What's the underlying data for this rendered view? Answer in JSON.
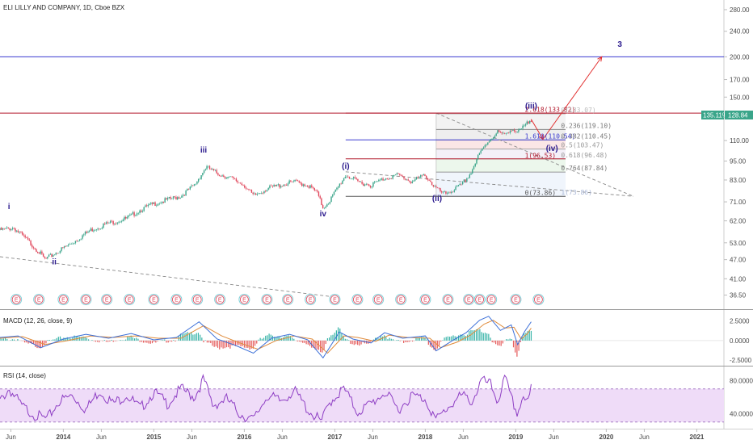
{
  "title": "ELI LILLY AND COMPANY, 1D, Cboe BZX",
  "colors": {
    "up": "#3aa58a",
    "down": "#e0455a",
    "red_line": "#b2182b",
    "blue_line": "#3a3ad0",
    "wave_label": "#2b1a8e",
    "macd": "#3b6fd8",
    "signal": "#e08b3a",
    "rsi": "#8e3ec4",
    "rsi_band": "#efdcf8"
  },
  "chart_data": [
    {
      "type": "line",
      "name": "price",
      "x_ticks": [
        "Jun",
        "2014",
        "Jun",
        "2015",
        "Jun",
        "2016",
        "Jun",
        "2017",
        "Jun",
        "2018",
        "Jun",
        "2019",
        "Jun",
        "2020",
        "Jun",
        "2021"
      ],
      "y_ticks": [
        "280.00",
        "240.00",
        "200.00",
        "170.00",
        "150.00",
        "130.00",
        "110.00",
        "95.00",
        "83.00",
        "71.00",
        "62.00",
        "53.00",
        "47.00",
        "41.00",
        "36.50"
      ],
      "y_scale": "log",
      "ylim": [
        33,
        300
      ],
      "x_range": [
        2013.3,
        2021.3
      ],
      "price_path": [
        [
          2013.3,
          58
        ],
        [
          2013.45,
          59
        ],
        [
          2013.6,
          54
        ],
        [
          2013.72,
          50
        ],
        [
          2013.8,
          47
        ],
        [
          2013.9,
          49
        ],
        [
          2014.1,
          53
        ],
        [
          2014.3,
          58
        ],
        [
          2014.5,
          61
        ],
        [
          2014.7,
          63
        ],
        [
          2014.85,
          67
        ],
        [
          2015.0,
          70
        ],
        [
          2015.15,
          72
        ],
        [
          2015.3,
          74
        ],
        [
          2015.45,
          80
        ],
        [
          2015.58,
          91
        ],
        [
          2015.7,
          87
        ],
        [
          2015.85,
          84
        ],
        [
          2016.0,
          80
        ],
        [
          2016.1,
          74
        ],
        [
          2016.25,
          78
        ],
        [
          2016.4,
          80
        ],
        [
          2016.55,
          82
        ],
        [
          2016.7,
          80
        ],
        [
          2016.8,
          76
        ],
        [
          2016.87,
          68
        ],
        [
          2016.95,
          72
        ],
        [
          2017.05,
          80
        ],
        [
          2017.12,
          86
        ],
        [
          2017.25,
          82
        ],
        [
          2017.4,
          80
        ],
        [
          2017.55,
          84
        ],
        [
          2017.7,
          86
        ],
        [
          2017.85,
          82
        ],
        [
          2018.0,
          86
        ],
        [
          2018.1,
          79
        ],
        [
          2018.2,
          75
        ],
        [
          2018.3,
          77
        ],
        [
          2018.4,
          80
        ],
        [
          2018.5,
          87
        ],
        [
          2018.6,
          100
        ],
        [
          2018.7,
          110
        ],
        [
          2018.8,
          117
        ],
        [
          2018.87,
          114
        ],
        [
          2018.95,
          120
        ],
        [
          2019.02,
          116
        ],
        [
          2019.1,
          122
        ],
        [
          2019.17,
          128
        ]
      ],
      "red_candle_years": [
        2013.45,
        2013.72,
        2014.3,
        2015.58,
        2015.85,
        2016.1,
        2016.55,
        2016.8,
        2017.25,
        2017.85,
        2018.1,
        2018.87
      ],
      "wave_labels": [
        {
          "text": "i",
          "x": 2013.4,
          "y": 67.5
        },
        {
          "text": "ii",
          "x": 2013.9,
          "y": 45.5
        },
        {
          "text": "iii",
          "x": 2015.55,
          "y": 101
        },
        {
          "text": "iv",
          "x": 2016.87,
          "y": 64
        },
        {
          "text": "(i)",
          "x": 2017.12,
          "y": 90
        },
        {
          "text": "(ii)",
          "x": 2018.13,
          "y": 71.5
        },
        {
          "text": "(iii)",
          "x": 2019.17,
          "y": 138
        },
        {
          "text": "(iv)",
          "x": 2019.4,
          "y": 102
        },
        {
          "text": "3",
          "x": 2020.15,
          "y": 215
        }
      ],
      "fib_levels": [
        {
          "label": "2.618(133.82)",
          "value": 133.82,
          "color": "#b2182b"
        },
        {
          "label": "1.610(110.54)",
          "value": 110.54,
          "color": "#3a3ad0"
        },
        {
          "label": "1(96.53)",
          "value": 96.53,
          "color": "#b2182b"
        },
        {
          "label": "0(73.86)",
          "value": 73.86,
          "color": "#555555"
        },
        {
          "label": "0(133.07)",
          "value": 133.07,
          "color": "#bbbbbb"
        },
        {
          "label": "0.236(119.10)",
          "value": 119.1,
          "color": "#777777"
        },
        {
          "label": "0.382(110.45)",
          "value": 110.45,
          "color": "#777777"
        },
        {
          "label": "0.5(103.47)",
          "value": 103.47,
          "color": "#999999"
        },
        {
          "label": "0.618(96.48)",
          "value": 96.48,
          "color": "#999999"
        },
        {
          "label": "0.764(87.84)",
          "value": 87.84,
          "color": "#777777"
        },
        {
          "label": "1(73.86)",
          "value": 73.86,
          "color": "#a9b7d6"
        }
      ],
      "resistance_lines": [
        {
          "value": 200,
          "color": "#3a3ad0"
        },
        {
          "value": 133.82,
          "color": "#b2182b"
        }
      ],
      "projection_path": [
        [
          2019.17,
          128
        ],
        [
          2019.3,
          111
        ],
        [
          2019.95,
          200
        ]
      ],
      "last_price_badges": [
        "135.11%",
        "128.84"
      ],
      "earnings_marker": "E",
      "earnings_years": [
        2013.48,
        2013.73,
        2014.0,
        2014.25,
        2014.48,
        2014.73,
        2015.0,
        2015.25,
        2015.48,
        2015.73,
        2016.0,
        2016.25,
        2016.48,
        2016.73,
        2017.0,
        2017.25,
        2017.48,
        2017.73,
        2018.0,
        2018.25,
        2018.48,
        2018.6,
        2018.73,
        2019.0,
        2019.25
      ]
    },
    {
      "type": "line",
      "name": "MACD (12, 26, close, 9)",
      "y_ticks": [
        "2.5000",
        "0.0000",
        "-2.5000"
      ],
      "ylim": [
        -3.2,
        3.8
      ],
      "macd": [
        [
          2013.3,
          0.4
        ],
        [
          2013.5,
          0.6
        ],
        [
          2013.75,
          -0.9
        ],
        [
          2014.0,
          0.2
        ],
        [
          2014.25,
          0.8
        ],
        [
          2014.5,
          0.3
        ],
        [
          2014.75,
          0.9
        ],
        [
          2015.0,
          0.1
        ],
        [
          2015.25,
          0.4
        ],
        [
          2015.5,
          2.4
        ],
        [
          2015.7,
          0.2
        ],
        [
          2015.9,
          -0.6
        ],
        [
          2016.1,
          -1.6
        ],
        [
          2016.3,
          0.3
        ],
        [
          2016.5,
          0.8
        ],
        [
          2016.7,
          0.1
        ],
        [
          2016.87,
          -2.2
        ],
        [
          2017.05,
          1.1
        ],
        [
          2017.2,
          0.2
        ],
        [
          2017.4,
          -0.3
        ],
        [
          2017.55,
          1.0
        ],
        [
          2017.75,
          0.3
        ],
        [
          2018.0,
          0.6
        ],
        [
          2018.12,
          -1.3
        ],
        [
          2018.3,
          0.0
        ],
        [
          2018.45,
          1.0
        ],
        [
          2018.6,
          2.6
        ],
        [
          2018.7,
          3.1
        ],
        [
          2018.83,
          1.3
        ],
        [
          2018.95,
          2.0
        ],
        [
          2019.02,
          -0.5
        ],
        [
          2019.1,
          1.2
        ],
        [
          2019.17,
          2.4
        ]
      ],
      "signal": [
        [
          2013.3,
          0.3
        ],
        [
          2013.55,
          0.5
        ],
        [
          2013.8,
          -0.5
        ],
        [
          2014.05,
          0.0
        ],
        [
          2014.3,
          0.6
        ],
        [
          2014.55,
          0.4
        ],
        [
          2014.8,
          0.6
        ],
        [
          2015.05,
          0.3
        ],
        [
          2015.3,
          0.3
        ],
        [
          2015.55,
          1.9
        ],
        [
          2015.75,
          0.6
        ],
        [
          2015.95,
          -0.3
        ],
        [
          2016.15,
          -1.1
        ],
        [
          2016.35,
          0.0
        ],
        [
          2016.55,
          0.6
        ],
        [
          2016.75,
          0.2
        ],
        [
          2016.92,
          -1.6
        ],
        [
          2017.1,
          0.6
        ],
        [
          2017.25,
          0.4
        ],
        [
          2017.45,
          -0.1
        ],
        [
          2017.6,
          0.7
        ],
        [
          2017.8,
          0.4
        ],
        [
          2018.05,
          0.3
        ],
        [
          2018.17,
          -0.9
        ],
        [
          2018.35,
          -0.2
        ],
        [
          2018.5,
          0.7
        ],
        [
          2018.65,
          2.1
        ],
        [
          2018.75,
          2.6
        ],
        [
          2018.88,
          1.6
        ],
        [
          2018.98,
          1.7
        ],
        [
          2019.06,
          0.2
        ],
        [
          2019.13,
          0.9
        ],
        [
          2019.17,
          1.6
        ]
      ]
    },
    {
      "type": "line",
      "name": "RSI (14, close)",
      "y_ticks": [
        "80.0000",
        "40.0000"
      ],
      "ylim": [
        22,
        96
      ],
      "band": [
        30,
        70
      ],
      "rsi": [
        [
          2013.3,
          55
        ],
        [
          2013.4,
          70
        ],
        [
          2013.55,
          48
        ],
        [
          2013.7,
          38
        ],
        [
          2013.82,
          33
        ],
        [
          2013.95,
          55
        ],
        [
          2014.1,
          62
        ],
        [
          2014.25,
          45
        ],
        [
          2014.4,
          68
        ],
        [
          2014.55,
          52
        ],
        [
          2014.7,
          63
        ],
        [
          2014.85,
          46
        ],
        [
          2015.0,
          66
        ],
        [
          2015.15,
          52
        ],
        [
          2015.3,
          70
        ],
        [
          2015.45,
          60
        ],
        [
          2015.55,
          82
        ],
        [
          2015.65,
          50
        ],
        [
          2015.8,
          58
        ],
        [
          2015.95,
          40
        ],
        [
          2016.1,
          32
        ],
        [
          2016.25,
          62
        ],
        [
          2016.4,
          55
        ],
        [
          2016.55,
          68
        ],
        [
          2016.7,
          45
        ],
        [
          2016.85,
          30
        ],
        [
          2016.95,
          55
        ],
        [
          2017.1,
          70
        ],
        [
          2017.25,
          42
        ],
        [
          2017.4,
          52
        ],
        [
          2017.55,
          66
        ],
        [
          2017.7,
          45
        ],
        [
          2017.85,
          62
        ],
        [
          2018.0,
          58
        ],
        [
          2018.12,
          32
        ],
        [
          2018.25,
          48
        ],
        [
          2018.4,
          62
        ],
        [
          2018.52,
          55
        ],
        [
          2018.62,
          80
        ],
        [
          2018.72,
          75
        ],
        [
          2018.8,
          55
        ],
        [
          2018.88,
          83
        ],
        [
          2018.95,
          58
        ],
        [
          2019.02,
          40
        ],
        [
          2019.08,
          62
        ],
        [
          2019.14,
          52
        ],
        [
          2019.17,
          72
        ]
      ]
    }
  ]
}
